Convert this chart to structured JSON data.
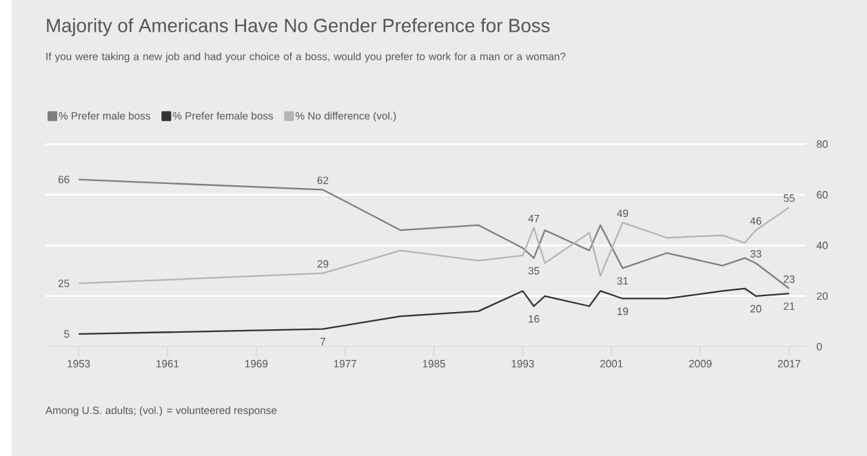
{
  "chart_data": {
    "type": "line",
    "title": "Majority of Americans Have No Gender Preference for Boss",
    "subtitle": "If you were taking a new job and had your choice of a boss, would you prefer to work for a man or a woman?",
    "annotations": [
      "Among U.S. adults; (vol.) = volunteered response"
    ],
    "x": [
      1953,
      1975,
      1982,
      1989,
      1993,
      1994,
      1995,
      1999,
      2000,
      2002,
      2006,
      2011,
      2013,
      2014,
      2017
    ],
    "series": [
      {
        "name": "% Prefer male boss",
        "color": "#7f7f7f",
        "values": [
          66,
          62,
          46,
          48,
          39,
          35,
          46,
          38,
          48,
          31,
          37,
          32,
          35,
          33,
          23
        ],
        "value_labels": [
          "66",
          "62",
          null,
          null,
          null,
          "35",
          null,
          null,
          null,
          "31",
          null,
          null,
          null,
          "33",
          "23"
        ]
      },
      {
        "name": "% Prefer female boss",
        "color": "#333333",
        "values": [
          5,
          7,
          12,
          14,
          22,
          16,
          20,
          16,
          22,
          19,
          19,
          22,
          23,
          20,
          21
        ],
        "value_labels": [
          "5",
          "7",
          null,
          null,
          null,
          "16",
          null,
          null,
          null,
          "19",
          null,
          null,
          null,
          "20",
          "21"
        ]
      },
      {
        "name": "% No difference (vol.)",
        "color": "#b5b5b5",
        "values": [
          25,
          29,
          38,
          34,
          36,
          47,
          33,
          45,
          28,
          49,
          43,
          44,
          41,
          46,
          55
        ],
        "value_labels": [
          "25",
          "29",
          null,
          null,
          null,
          "47",
          null,
          null,
          null,
          "49",
          null,
          null,
          null,
          "46",
          "55"
        ]
      }
    ],
    "xlim": [
      1950,
      2018.5
    ],
    "ylim": [
      0,
      80
    ],
    "xticks": [
      1953,
      1961,
      1969,
      1977,
      1985,
      1993,
      2001,
      2009,
      2017
    ],
    "yticks": [
      0,
      20,
      40,
      60,
      80
    ],
    "grid": "y",
    "legend": "top left"
  }
}
